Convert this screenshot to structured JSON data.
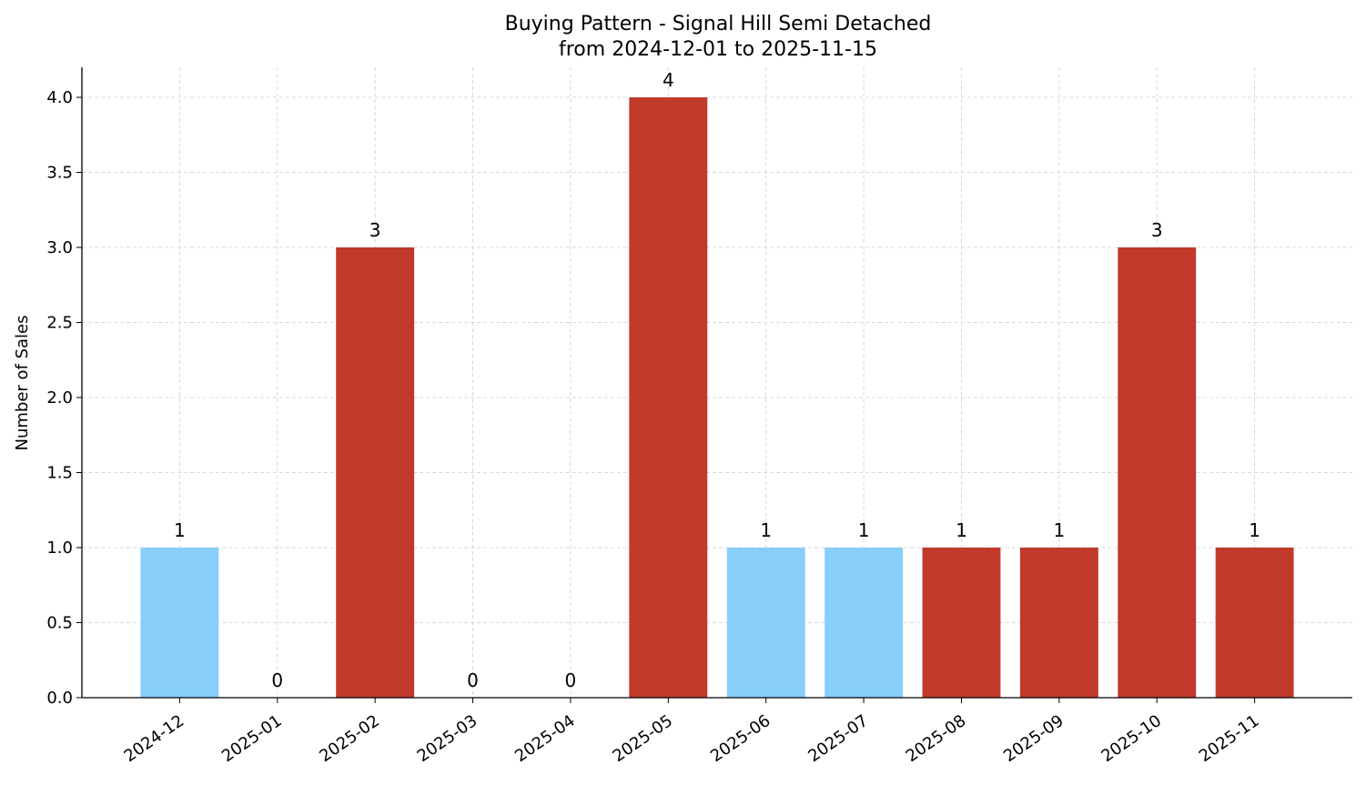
{
  "chart_data": {
    "type": "bar",
    "title": "Buying Pattern - Signal Hill Semi Detached",
    "subtitle": "from 2024-12-01 to 2025-11-15",
    "xlabel": "",
    "ylabel": "Number of Sales",
    "categories": [
      "2024-12",
      "2025-01",
      "2025-02",
      "2025-03",
      "2025-04",
      "2025-05",
      "2025-06",
      "2025-07",
      "2025-08",
      "2025-09",
      "2025-10",
      "2025-11"
    ],
    "values": [
      1,
      0,
      3,
      0,
      0,
      4,
      1,
      1,
      1,
      1,
      3,
      1
    ],
    "bar_colors": [
      "#87CEFA",
      "#C0392B",
      "#C0392B",
      "#C0392B",
      "#C0392B",
      "#C0392B",
      "#87CEFA",
      "#87CEFA",
      "#C0392B",
      "#C0392B",
      "#C0392B",
      "#C0392B"
    ],
    "data_labels": [
      "1",
      "0",
      "3",
      "0",
      "0",
      "4",
      "1",
      "1",
      "1",
      "1",
      "3",
      "1"
    ],
    "ylim": [
      0,
      4.2
    ],
    "yticks": [
      "0.0",
      "0.5",
      "1.0",
      "1.5",
      "2.0",
      "2.5",
      "3.0",
      "3.5",
      "4.0"
    ],
    "grid": true,
    "legend": "none"
  }
}
